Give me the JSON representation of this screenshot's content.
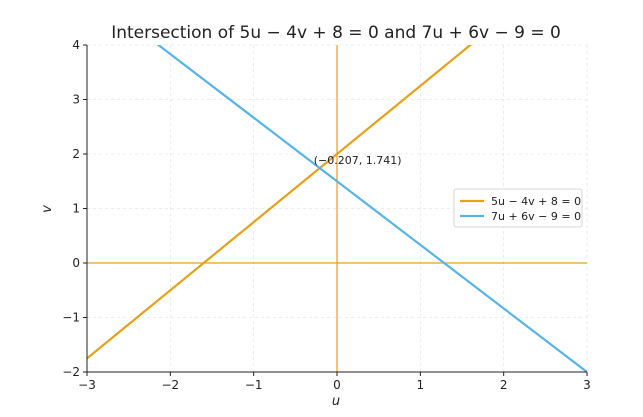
{
  "chart_data": {
    "type": "line",
    "title": "Intersection of 5u − 4v + 8 = 0 and 7u + 6v − 9 = 0",
    "xlabel": "u",
    "ylabel": "v",
    "xlim": [
      -3,
      3
    ],
    "ylim": [
      -2,
      4
    ],
    "xticks": [
      -3,
      -2,
      -1,
      0,
      1,
      2,
      3
    ],
    "yticks": [
      -2,
      -1,
      0,
      1,
      2,
      3,
      4
    ],
    "xtick_labels": [
      "−3",
      "−2",
      "−1",
      "0",
      "1",
      "2",
      "3"
    ],
    "ytick_labels": [
      "−2",
      "−1",
      "0",
      "1",
      "2",
      "3",
      "4"
    ],
    "grid": true,
    "legend_position": "right",
    "series": [
      {
        "name": "5u − 4v + 8 = 0",
        "color": "#E6A11A",
        "x": [
          -3,
          3
        ],
        "y": [
          -1.75,
          5.75
        ]
      },
      {
        "name": "7u + 6v − 9 = 0",
        "color": "#56B4E9",
        "x": [
          -3,
          3
        ],
        "y": [
          5,
          -2
        ]
      }
    ],
    "reference_lines": [
      {
        "orientation": "horizontal",
        "value": 0,
        "color": "#E6A11A"
      },
      {
        "orientation": "vertical",
        "value": 0,
        "color": "#E6A11A"
      }
    ],
    "annotations": [
      {
        "text": "(−0.207, 1.741)",
        "x": -0.207,
        "y": 1.741
      }
    ]
  }
}
